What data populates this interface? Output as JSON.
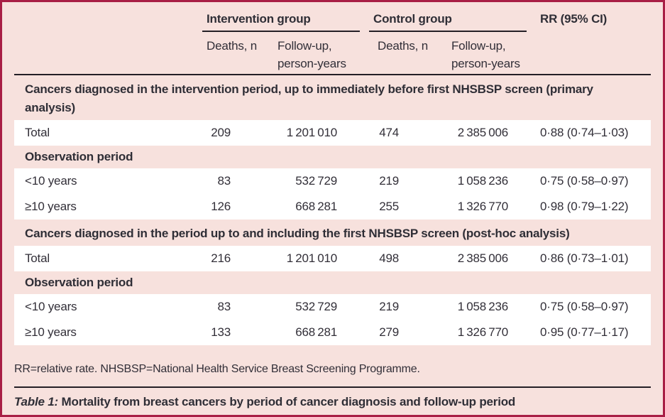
{
  "colors": {
    "frame_border": "#a81e45",
    "background_pink": "#f7e1dd",
    "row_white": "#ffffff",
    "rule_black": "#241f26"
  },
  "header": {
    "groups": [
      {
        "label": "Intervention group"
      },
      {
        "label": "Control group"
      }
    ],
    "rr": "RR (95% CI)",
    "columns": [
      "Deaths, n",
      "Follow-up, person-years",
      "Deaths, n",
      "Follow-up, person-years"
    ]
  },
  "sections": [
    {
      "title": "Cancers diagnosed in the intervention period, up to immediately before first NHSBSP screen (primary analysis)",
      "total": {
        "label": "Total",
        "deaths_int": "209",
        "py_int": "1 201 010",
        "deaths_ctl": "474",
        "py_ctl": "2 385 006",
        "rr": "0·88 (0·74–1·03)"
      },
      "subheader": "Observation period",
      "rows": [
        {
          "label": "<10 years",
          "deaths_int": "83",
          "py_int": "532 729",
          "deaths_ctl": "219",
          "py_ctl": "1 058 236",
          "rr": "0·75 (0·58–0·97)"
        },
        {
          "label": "≥10 years",
          "deaths_int": "126",
          "py_int": "668 281",
          "deaths_ctl": "255",
          "py_ctl": "1 326 770",
          "rr": "0·98 (0·79–1·22)"
        }
      ]
    },
    {
      "title": "Cancers diagnosed in the period up to and including the first NHSBSP screen (post-hoc analysis)",
      "total": {
        "label": "Total",
        "deaths_int": "216",
        "py_int": "1 201 010",
        "deaths_ctl": "498",
        "py_ctl": "2 385 006",
        "rr": "0·86 (0·73–1·01)"
      },
      "subheader": "Observation period",
      "rows": [
        {
          "label": "<10 years",
          "deaths_int": "83",
          "py_int": "532 729",
          "deaths_ctl": "219",
          "py_ctl": "1 058 236",
          "rr": "0·75 (0·58–0·97)"
        },
        {
          "label": "≥10 years",
          "deaths_int": "133",
          "py_int": "668 281",
          "deaths_ctl": "279",
          "py_ctl": "1 326 770",
          "rr": "0·95 (0·77–1·17)"
        }
      ]
    }
  ],
  "footnote": "RR=relative rate. NHSBSP=National Health Service Breast Screening Programme.",
  "caption": {
    "prefix": "Table 1:",
    "text": "Mortality from breast cancers by period of cancer diagnosis and follow-up period"
  }
}
